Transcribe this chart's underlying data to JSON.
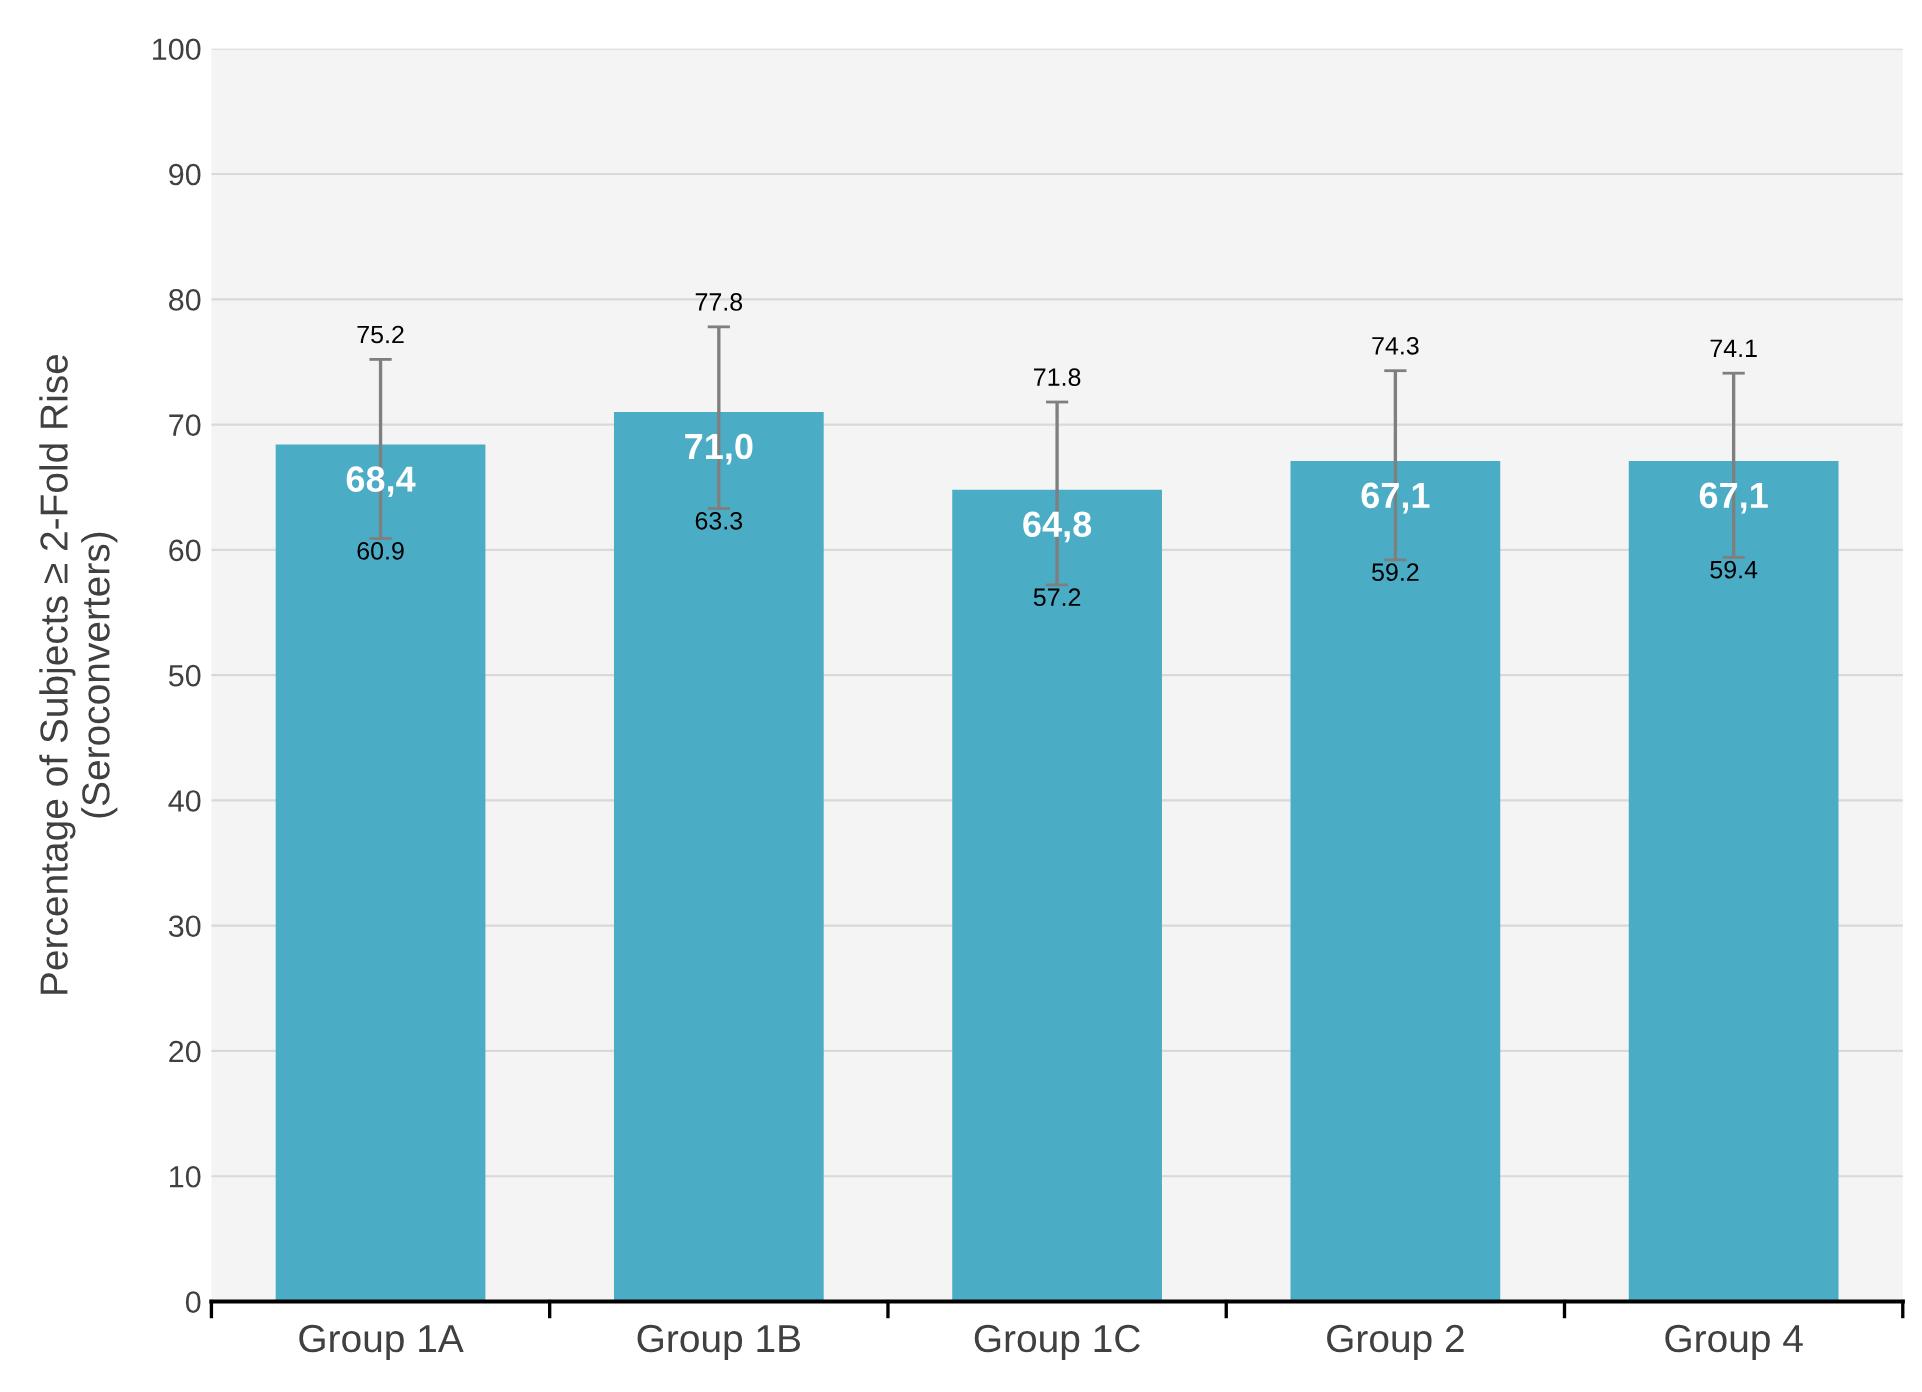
{
  "chart_data": {
    "type": "bar",
    "ylabel": "Percentage of Subjects ≥ 2-Fold Rise\n(Seroconverters)",
    "categories": [
      "Group 1A",
      "Group 1B",
      "Group 1C",
      "Group 2",
      "Group 4"
    ],
    "values": [
      68.4,
      71.0,
      64.8,
      67.1,
      67.1
    ],
    "value_labels": [
      "68,4",
      "71,0",
      "64,8",
      "67,1",
      "67,1"
    ],
    "errors": [
      [
        60.9,
        75.2
      ],
      [
        63.3,
        77.8
      ],
      [
        57.2,
        71.8
      ],
      [
        59.2,
        74.3
      ],
      [
        59.4,
        74.1
      ]
    ],
    "color": "#4bacc6",
    "ylim": [
      0,
      100
    ],
    "yticks": [
      0,
      10,
      20,
      30,
      40,
      50,
      60,
      70,
      80,
      90,
      100
    ],
    "grid": "y",
    "annotations": [
      {
        "text": "75.2",
        "x": "Group 1A",
        "y": 75.2
      },
      {
        "text": "60.9",
        "x": "Group 1A",
        "y": 60.9
      },
      {
        "text": "77.8",
        "x": "Group 1B",
        "y": 77.8
      },
      {
        "text": "63.3",
        "x": "Group 1B",
        "y": 63.3
      },
      {
        "text": "71.8",
        "x": "Group 1C",
        "y": 71.8
      },
      {
        "text": "57.2",
        "x": "Group 1C",
        "y": 57.2
      },
      {
        "text": "74.3",
        "x": "Group 2",
        "y": 74.3
      },
      {
        "text": "59.2",
        "x": "Group 2",
        "y": 59.2
      },
      {
        "text": "74.1",
        "x": "Group 4",
        "y": 74.1
      },
      {
        "text": "59.4",
        "x": "Group 4",
        "y": 59.4
      }
    ]
  }
}
